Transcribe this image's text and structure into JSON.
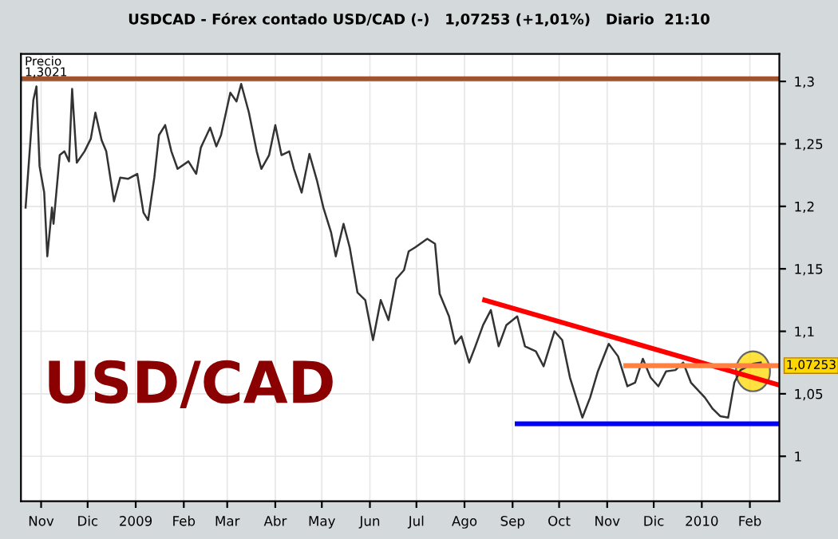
{
  "chart_data": {
    "type": "line",
    "title": "USDCAD - Fórex contado USD/CAD (-)   1,07253 (+1,01%)   Diario  21:10",
    "ylabel": "Precio",
    "annotations": [
      "USD/CAD",
      {
        "text": "1,07253",
        "x": "2010-02-20",
        "y": 1.07253
      }
    ],
    "series": [
      {
        "color": "#333333",
        "x": [
          "2008-10-22",
          "2008-10-27",
          "2008-10-29",
          "2008-10-31",
          "2008-11-03",
          "2008-11-05",
          "2008-11-08",
          "2008-11-09",
          "2008-11-13",
          "2008-11-16",
          "2008-11-19",
          "2008-11-21",
          "2008-11-24",
          "2008-11-29",
          "2008-12-03",
          "2008-12-06",
          "2008-12-10",
          "2008-12-13",
          "2008-12-18",
          "2008-12-22",
          "2008-12-27",
          "2009-01-02",
          "2009-01-06",
          "2009-01-09",
          "2009-01-13",
          "2009-01-16",
          "2009-01-20",
          "2009-01-24",
          "2009-01-28",
          "2009-02-04",
          "2009-02-09",
          "2009-02-12",
          "2009-02-18",
          "2009-02-22",
          "2009-02-25",
          "2009-03-03",
          "2009-03-07",
          "2009-03-10",
          "2009-03-15",
          "2009-03-20",
          "2009-03-23",
          "2009-03-28",
          "2009-04-01",
          "2009-04-05",
          "2009-04-10",
          "2009-04-13",
          "2009-04-18",
          "2009-04-23",
          "2009-04-28",
          "2009-05-02",
          "2009-05-07",
          "2009-05-10",
          "2009-05-15",
          "2009-05-19",
          "2009-05-24",
          "2009-05-29",
          "2009-06-03",
          "2009-06-08",
          "2009-06-13",
          "2009-06-18",
          "2009-06-23",
          "2009-06-26",
          "2009-06-30",
          "2009-07-08",
          "2009-07-13",
          "2009-07-16",
          "2009-07-22",
          "2009-07-26",
          "2009-07-30",
          "2009-08-04",
          "2009-08-08",
          "2009-08-13",
          "2009-08-18",
          "2009-08-23",
          "2009-08-28",
          "2009-09-04",
          "2009-09-09",
          "2009-09-16",
          "2009-09-21",
          "2009-09-28",
          "2009-10-03",
          "2009-10-08",
          "2009-10-13",
          "2009-10-16",
          "2009-10-21",
          "2009-10-26",
          "2009-11-02",
          "2009-11-08",
          "2009-11-14",
          "2009-11-19",
          "2009-11-24",
          "2009-11-29",
          "2009-12-04",
          "2009-12-09",
          "2009-12-15",
          "2009-12-20",
          "2009-12-25",
          "2010-01-03",
          "2010-01-08",
          "2010-01-13",
          "2010-01-18",
          "2010-01-22",
          "2010-01-26",
          "2010-02-03",
          "2010-02-08"
        ],
        "values": [
          1.199,
          1.285,
          1.296,
          1.232,
          1.211,
          1.16,
          1.199,
          1.186,
          1.241,
          1.244,
          1.236,
          1.294,
          1.235,
          1.244,
          1.254,
          1.275,
          1.253,
          1.244,
          1.204,
          1.223,
          1.222,
          1.226,
          1.195,
          1.189,
          1.223,
          1.257,
          1.265,
          1.244,
          1.23,
          1.236,
          1.226,
          1.247,
          1.263,
          1.248,
          1.257,
          1.291,
          1.284,
          1.298,
          1.275,
          1.244,
          1.23,
          1.241,
          1.265,
          1.241,
          1.244,
          1.23,
          1.211,
          1.242,
          1.22,
          1.199,
          1.179,
          1.16,
          1.186,
          1.167,
          1.131,
          1.125,
          1.093,
          1.125,
          1.109,
          1.142,
          1.149,
          1.164,
          1.167,
          1.174,
          1.17,
          1.13,
          1.112,
          1.09,
          1.096,
          1.075,
          1.088,
          1.105,
          1.117,
          1.088,
          1.105,
          1.112,
          1.088,
          1.084,
          1.072,
          1.1,
          1.093,
          1.063,
          1.043,
          1.031,
          1.047,
          1.068,
          1.09,
          1.08,
          1.056,
          1.059,
          1.078,
          1.063,
          1.056,
          1.068,
          1.069,
          1.075,
          1.059,
          1.047,
          1.038,
          1.032,
          1.031,
          1.059,
          1.069,
          1.074,
          1.075
        ]
      },
      {
        "color": "#ff0000",
        "x": [
          "2009-08-14",
          "2010-02-20"
        ],
        "values": [
          1.125,
          1.057
        ]
      },
      {
        "color": "#0000ff",
        "x": [
          "2009-09-04",
          "2010-02-20"
        ],
        "values": [
          1.026,
          1.026
        ]
      },
      {
        "color": "#ff8040",
        "x": [
          "2009-11-13",
          "2010-02-20"
        ],
        "values": [
          1.07253,
          1.07253
        ]
      }
    ],
    "ref_lines": [
      {
        "axis": "y",
        "value": 1.3021,
        "label": "1,3021",
        "color": "#a0522d"
      }
    ],
    "xlim": [
      "2008-10-19",
      "2010-02-20"
    ],
    "xticks": [
      {
        "value": "2008-11-01",
        "label": "Nov"
      },
      {
        "value": "2008-12-01",
        "label": "Dic"
      },
      {
        "value": "2009-01-01",
        "label": "2009"
      },
      {
        "value": "2009-02-01",
        "label": "Feb"
      },
      {
        "value": "2009-03-01",
        "label": "Mar"
      },
      {
        "value": "2009-04-01",
        "label": "Abr"
      },
      {
        "value": "2009-05-01",
        "label": "May"
      },
      {
        "value": "2009-06-01",
        "label": "Jun"
      },
      {
        "value": "2009-07-01",
        "label": "Jul"
      },
      {
        "value": "2009-08-01",
        "label": "Ago"
      },
      {
        "value": "2009-09-01",
        "label": "Sep"
      },
      {
        "value": "2009-10-01",
        "label": "Oct"
      },
      {
        "value": "2009-11-01",
        "label": "Nov"
      },
      {
        "value": "2009-12-01",
        "label": "Dic"
      },
      {
        "value": "2010-01-01",
        "label": "2010"
      },
      {
        "value": "2010-02-01",
        "label": "Feb"
      }
    ],
    "ylim": [
      0.964,
      1.322
    ],
    "yticks": [
      1,
      {
        "value": 1.05,
        "label": "1,05"
      },
      {
        "value": 1.1,
        "label": "1,1"
      },
      {
        "value": 1.15,
        "label": "1,15"
      },
      {
        "value": 1.2,
        "label": "1,2"
      },
      {
        "value": 1.25,
        "label": "1,25"
      },
      {
        "value": 1.3,
        "label": "1,3"
      }
    ],
    "grid": true,
    "legend": false,
    "marker": "none",
    "line_style": "solid"
  }
}
